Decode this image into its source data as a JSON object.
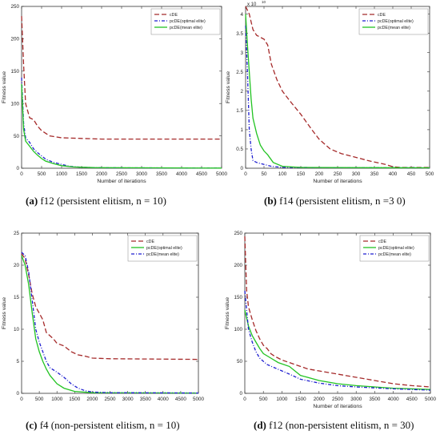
{
  "captions": [
    {
      "letter": "(a)",
      "text": " f12 (persistent elitism, n = 10)"
    },
    {
      "letter": "(b)",
      "text": " f14 (persistent elitism, n =3 0)"
    },
    {
      "letter": "(c)",
      "text": " f4 (non-persistent elitism, n = 10)"
    },
    {
      "letter": "(d)",
      "text": " f12 (non-persistent elitism, n = 30)"
    }
  ],
  "colors": {
    "cDE": "#a52a2a",
    "pcDE_optimal": "#1f1fd0",
    "pcDE_mean": "#22c322",
    "axis": "#333333",
    "shade": "#f4b8c0"
  },
  "chart_data": [
    {
      "type": "line",
      "xlabel": "Number of iterations",
      "ylabel": "Fitness value",
      "xlim": [
        0,
        5000
      ],
      "ylim": [
        0,
        250
      ],
      "xticks": [
        0,
        500,
        1000,
        1500,
        2000,
        2500,
        3000,
        3500,
        4000,
        4500,
        5000
      ],
      "yticks": [
        0,
        50,
        100,
        150,
        200,
        250
      ],
      "exponent": "",
      "legend": "top-right",
      "series": [
        {
          "name": "cDE",
          "color": "#a52a2a",
          "dash": "6,3",
          "points": [
            [
              0,
              235
            ],
            [
              50,
              160
            ],
            [
              100,
              100
            ],
            [
              200,
              78
            ],
            [
              300,
              75
            ],
            [
              400,
              65
            ],
            [
              500,
              58
            ],
            [
              700,
              50
            ],
            [
              1000,
              47
            ],
            [
              1500,
              46
            ],
            [
              2000,
              45
            ],
            [
              5000,
              45
            ]
          ]
        },
        {
          "name": "pcDE(optimal elite)",
          "color": "#1f1fd0",
          "dash": "4,2,1,2",
          "points": [
            [
              0,
              140
            ],
            [
              50,
              70
            ],
            [
              100,
              47
            ],
            [
              200,
              40
            ],
            [
              300,
              30
            ],
            [
              400,
              24
            ],
            [
              500,
              19
            ],
            [
              600,
              14
            ],
            [
              800,
              9
            ],
            [
              1000,
              6
            ],
            [
              1200,
              3
            ],
            [
              1500,
              1.5
            ],
            [
              2000,
              0.8
            ],
            [
              5000,
              0.3
            ]
          ]
        },
        {
          "name": "pcDE(mean elite)",
          "color": "#22c322",
          "dash": "",
          "points": [
            [
              0,
              130
            ],
            [
              50,
              60
            ],
            [
              100,
              42
            ],
            [
              200,
              34
            ],
            [
              300,
              26
            ],
            [
              400,
              20
            ],
            [
              500,
              15
            ],
            [
              600,
              11
            ],
            [
              800,
              7
            ],
            [
              1000,
              4
            ],
            [
              1300,
              2
            ],
            [
              1800,
              1
            ],
            [
              5000,
              0.3
            ]
          ]
        }
      ]
    },
    {
      "type": "line",
      "xlabel": "Number of iterations",
      "ylabel": "Fitness value",
      "xlim": [
        0,
        500
      ],
      "ylim": [
        0,
        4.2
      ],
      "xticks": [
        0,
        50,
        100,
        150,
        200,
        250,
        300,
        350,
        400,
        450,
        500
      ],
      "yticks": [
        0,
        0.5,
        1,
        1.5,
        2,
        2.5,
        3,
        3.5,
        4
      ],
      "exponent": "x 10",
      "exponent_power": "10",
      "legend": "top-right",
      "series": [
        {
          "name": "cDE",
          "color": "#a52a2a",
          "dash": "6,3",
          "points": [
            [
              0,
              4.2
            ],
            [
              10,
              4.0
            ],
            [
              20,
              3.6
            ],
            [
              30,
              3.45
            ],
            [
              50,
              3.35
            ],
            [
              60,
              3.2
            ],
            [
              70,
              2.7
            ],
            [
              85,
              2.3
            ],
            [
              100,
              2.0
            ],
            [
              120,
              1.75
            ],
            [
              150,
              1.4
            ],
            [
              180,
              1.0
            ],
            [
              200,
              0.75
            ],
            [
              230,
              0.5
            ],
            [
              260,
              0.38
            ],
            [
              300,
              0.28
            ],
            [
              340,
              0.18
            ],
            [
              380,
              0.1
            ],
            [
              400,
              0.04
            ],
            [
              420,
              0.02
            ],
            [
              500,
              0.02
            ]
          ]
        },
        {
          "name": "pcDE(optimal elite)",
          "color": "#1f1fd0",
          "dash": "4,2,1,2",
          "points": [
            [
              0,
              3.7
            ],
            [
              5,
              2.5
            ],
            [
              10,
              1.0
            ],
            [
              15,
              0.5
            ],
            [
              20,
              0.2
            ],
            [
              30,
              0.15
            ],
            [
              50,
              0.1
            ],
            [
              70,
              0.05
            ],
            [
              100,
              0.02
            ],
            [
              500,
              0.01
            ]
          ]
        },
        {
          "name": "pcDE(mean elite)",
          "color": "#22c322",
          "dash": "",
          "points": [
            [
              0,
              4.0
            ],
            [
              5,
              3.2
            ],
            [
              10,
              2.5
            ],
            [
              15,
              1.8
            ],
            [
              20,
              1.3
            ],
            [
              30,
              0.9
            ],
            [
              40,
              0.6
            ],
            [
              50,
              0.45
            ],
            [
              60,
              0.35
            ],
            [
              75,
              0.15
            ],
            [
              100,
              0.05
            ],
            [
              150,
              0.02
            ],
            [
              500,
              0.01
            ]
          ]
        }
      ]
    },
    {
      "type": "line",
      "xlabel": "",
      "ylabel": "Fitness value",
      "xlim": [
        0,
        5000
      ],
      "ylim": [
        0,
        25
      ],
      "xticks": [
        0,
        500,
        1000,
        1500,
        2000,
        2500,
        3000,
        3500,
        4000,
        4500,
        5000
      ],
      "yticks": [
        0,
        5,
        10,
        15,
        20,
        25
      ],
      "exponent": "",
      "legend": "top-right",
      "series": [
        {
          "name": "cDE",
          "color": "#a52a2a",
          "dash": "6,3",
          "points": [
            [
              0,
              21.8
            ],
            [
              100,
              21.0
            ],
            [
              200,
              18.5
            ],
            [
              300,
              15.5
            ],
            [
              400,
              13.5
            ],
            [
              500,
              12.5
            ],
            [
              600,
              11.5
            ],
            [
              700,
              9.5
            ],
            [
              900,
              8.5
            ],
            [
              1000,
              7.8
            ],
            [
              1200,
              7.4
            ],
            [
              1400,
              6.5
            ],
            [
              1600,
              6.0
            ],
            [
              1800,
              5.8
            ],
            [
              2000,
              5.5
            ],
            [
              2500,
              5.4
            ],
            [
              5000,
              5.3
            ]
          ]
        },
        {
          "name": "pcDE(optimal elite)",
          "color": "#22c322",
          "dash": "",
          "points": [
            [
              0,
              21.5
            ],
            [
              100,
              20
            ],
            [
              200,
              17
            ],
            [
              300,
              12.5
            ],
            [
              400,
              8.5
            ],
            [
              500,
              6.5
            ],
            [
              600,
              5.0
            ],
            [
              700,
              3.8
            ],
            [
              800,
              2.8
            ],
            [
              1000,
              1.5
            ],
            [
              1200,
              0.8
            ],
            [
              1500,
              0.3
            ],
            [
              2000,
              0.1
            ],
            [
              5000,
              0.05
            ]
          ]
        },
        {
          "name": "pcDE(mean elite)",
          "color": "#1f1fd0",
          "dash": "4,2,1,2",
          "points": [
            [
              0,
              22
            ],
            [
              100,
              21.5
            ],
            [
              200,
              19
            ],
            [
              300,
              14.5
            ],
            [
              400,
              10
            ],
            [
              500,
              8.0
            ],
            [
              600,
              6.5
            ],
            [
              700,
              5.0
            ],
            [
              800,
              4.0
            ],
            [
              1000,
              3.3
            ],
            [
              1200,
              2.5
            ],
            [
              1400,
              1.5
            ],
            [
              1600,
              0.8
            ],
            [
              1800,
              0.4
            ],
            [
              2000,
              0.2
            ],
            [
              2500,
              0.1
            ],
            [
              5000,
              0.05
            ]
          ]
        }
      ]
    },
    {
      "type": "line",
      "xlabel": "Number of iterations",
      "ylabel": "Fitness value",
      "xlim": [
        0,
        5000
      ],
      "ylim": [
        0,
        250
      ],
      "xticks": [
        0,
        500,
        1000,
        1500,
        2000,
        2500,
        3000,
        3500,
        4000,
        4500,
        5000
      ],
      "yticks": [
        0,
        50,
        100,
        150,
        200,
        250
      ],
      "exponent": "",
      "legend": "top-right",
      "series": [
        {
          "name": "cDE",
          "color": "#a52a2a",
          "dash": "6,3",
          "points": [
            [
              0,
              245
            ],
            [
              50,
              160
            ],
            [
              100,
              135
            ],
            [
              200,
              115
            ],
            [
              300,
              98
            ],
            [
              400,
              85
            ],
            [
              500,
              75
            ],
            [
              600,
              70
            ],
            [
              700,
              62
            ],
            [
              800,
              58
            ],
            [
              1000,
              52
            ],
            [
              1200,
              48
            ],
            [
              1500,
              42
            ],
            [
              1700,
              38
            ],
            [
              2000,
              35
            ],
            [
              2500,
              30
            ],
            [
              3000,
              25
            ],
            [
              3500,
              20
            ],
            [
              4000,
              15
            ],
            [
              4500,
              12
            ],
            [
              5000,
              10
            ]
          ]
        },
        {
          "name": "pcDE(optimal elite)",
          "color": "#22c322",
          "dash": "",
          "points": [
            [
              0,
              130
            ],
            [
              100,
              105
            ],
            [
              200,
              90
            ],
            [
              300,
              80
            ],
            [
              400,
              70
            ],
            [
              500,
              62
            ],
            [
              700,
              55
            ],
            [
              900,
              48
            ],
            [
              1200,
              42
            ],
            [
              1500,
              28
            ],
            [
              2000,
              20
            ],
            [
              2500,
              15
            ],
            [
              3000,
              12
            ],
            [
              4000,
              8
            ],
            [
              5000,
              6
            ]
          ]
        },
        {
          "name": "pcDE(mean elite)",
          "color": "#1f1fd0",
          "dash": "4,2,1,2",
          "points": [
            [
              0,
              160
            ],
            [
              100,
              100
            ],
            [
              200,
              80
            ],
            [
              300,
              65
            ],
            [
              400,
              55
            ],
            [
              600,
              45
            ],
            [
              800,
              40
            ],
            [
              1000,
              35
            ],
            [
              1200,
              30
            ],
            [
              1500,
              22
            ],
            [
              2000,
              16
            ],
            [
              2500,
              12
            ],
            [
              3000,
              10
            ],
            [
              4000,
              7
            ],
            [
              5000,
              5
            ]
          ]
        }
      ]
    }
  ]
}
